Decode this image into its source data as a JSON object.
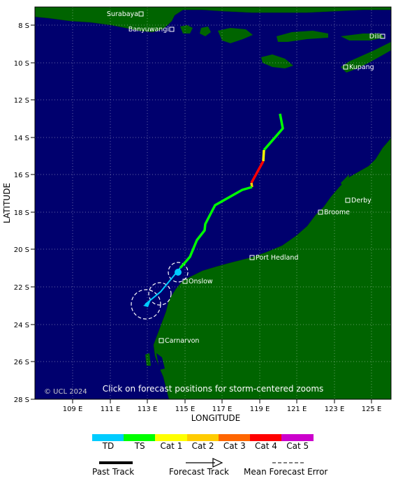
{
  "axes": {
    "y_label": "LATITUDE",
    "x_label": "LONGITUDE",
    "y_ticks": [
      "8 S",
      "10 S",
      "12 S",
      "14 S",
      "16 S",
      "18 S",
      "20 S",
      "22 S",
      "24 S",
      "26 S",
      "28 S"
    ],
    "x_ticks": [
      "109 E",
      "111 E",
      "113 E",
      "115 E",
      "117 E",
      "119 E",
      "121 E",
      "123 E",
      "125 E"
    ]
  },
  "cities": [
    {
      "name": "Surabaya"
    },
    {
      "name": "Banyuwangi"
    },
    {
      "name": "Dili"
    },
    {
      "name": "Kupang"
    },
    {
      "name": "Derby"
    },
    {
      "name": "Broome"
    },
    {
      "name": "Port Hedland"
    },
    {
      "name": "Onslow"
    },
    {
      "name": "Carnarvon"
    }
  ],
  "copyright": "© UCL 2024",
  "hint": "Click on forecast positions for storm-centered zooms",
  "scale": [
    {
      "label": "TD",
      "color": "#00ccff"
    },
    {
      "label": "TS",
      "color": "#00ff00"
    },
    {
      "label": "Cat 1",
      "color": "#ffff00"
    },
    {
      "label": "Cat 2",
      "color": "#ffcc00"
    },
    {
      "label": "Cat 3",
      "color": "#ff6600"
    },
    {
      "label": "Cat 4",
      "color": "#ff0000"
    },
    {
      "label": "Cat 5",
      "color": "#cc00cc"
    }
  ],
  "legend": {
    "past": "Past Track",
    "forecast": "Forecast Track",
    "error": "Mean Forecast Error"
  },
  "colors": {
    "ocean": "#00006e",
    "land": "#006400",
    "grid": "#ffffff"
  }
}
